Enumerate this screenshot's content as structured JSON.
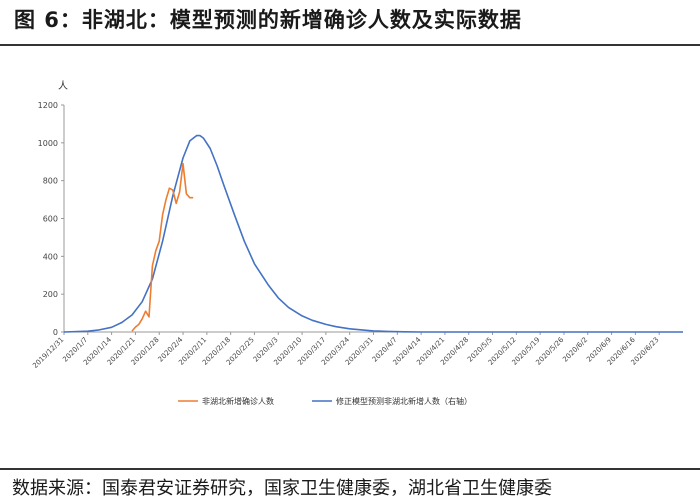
{
  "title": "图 6：非湖北：模型预测的新增确诊人数及实际数据",
  "source": "数据来源：国泰君安证券研究，国家卫生健康委，湖北省卫生健康委",
  "chart_data": {
    "type": "line",
    "ylabel": "人",
    "ylim": [
      0,
      1200
    ],
    "yticks": [
      "0",
      "200",
      "400",
      "600",
      "800",
      "1000",
      "1200"
    ],
    "x_tick_labels": [
      "2019/12/31",
      "2020/1/7",
      "2020/1/14",
      "2020/1/21",
      "2020/1/28",
      "2020/2/4",
      "2020/2/11",
      "2020/2/18",
      "2020/2/25",
      "2020/3/3",
      "2020/3/10",
      "2020/3/17",
      "2020/3/24",
      "2020/3/31",
      "2020/4/7",
      "2020/4/14",
      "2020/4/21",
      "2020/4/28",
      "2020/5/5",
      "2020/5/12",
      "2020/5/19",
      "2020/5/26",
      "2020/6/2",
      "2020/6/9",
      "2020/6/16",
      "2020/6/23"
    ],
    "x_range_days": [
      0,
      182
    ],
    "series": [
      {
        "name": "非湖北新增确诊人数",
        "color": "#ED7D31",
        "x_day": [
          20,
          21,
          22,
          23,
          24,
          25,
          26,
          27,
          28,
          29,
          30,
          31,
          32,
          33,
          34,
          35,
          36,
          37,
          38
        ],
        "values": [
          5,
          26,
          40,
          70,
          110,
          80,
          350,
          430,
          480,
          620,
          700,
          760,
          750,
          680,
          740,
          890,
          730,
          710,
          710
        ]
      },
      {
        "name": "修正模型预测非湖北新增人数（右轴）",
        "color": "#4472C4",
        "x_day": [
          0,
          7,
          10,
          14,
          17,
          20,
          23,
          26,
          29,
          32,
          35,
          37,
          39,
          40,
          41,
          43,
          45,
          47,
          50,
          53,
          56,
          60,
          63,
          66,
          70,
          73,
          77,
          80,
          84,
          88,
          91,
          95,
          100,
          105,
          110,
          120,
          140,
          160,
          182
        ],
        "values": [
          0,
          4,
          10,
          25,
          50,
          90,
          160,
          280,
          480,
          720,
          920,
          1010,
          1038,
          1038,
          1025,
          970,
          880,
          775,
          625,
          480,
          360,
          250,
          180,
          130,
          85,
          62,
          40,
          28,
          17,
          10,
          6,
          3,
          1,
          0,
          0,
          0,
          0,
          0,
          0
        ]
      }
    ]
  }
}
